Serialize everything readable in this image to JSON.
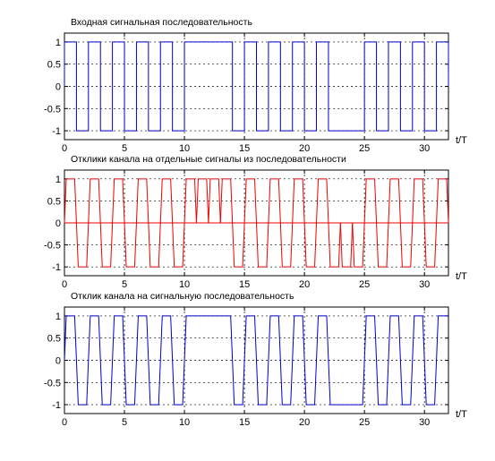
{
  "chart_data": [
    {
      "type": "line",
      "title": "Входная сигнальная последовательность",
      "xlabel": "t/T",
      "ylabel": "",
      "xlim": [
        0,
        32
      ],
      "ylim": [
        -1.2,
        1.2
      ],
      "xticks": [
        0,
        5,
        10,
        15,
        20,
        25,
        30
      ],
      "yticks": [
        1,
        0.5,
        0,
        -0.5,
        -1
      ],
      "ytick_labels": [
        "1",
        "0.5",
        "0",
        "-0.5",
        "-1"
      ],
      "grid": true,
      "color": "#0000cc",
      "series": [
        {
          "symbols": [
            1,
            -1,
            1,
            -1,
            1,
            -1,
            1,
            -1,
            1,
            -1,
            1,
            1,
            1,
            1,
            -1,
            1,
            -1,
            1,
            -1,
            1,
            -1,
            1,
            -1,
            -1,
            -1,
            1,
            -1,
            1,
            -1,
            1,
            -1,
            1
          ]
        }
      ]
    },
    {
      "type": "line",
      "title": "Отклики канала на отдельные сигналы из последовательности",
      "xlabel": "t/T",
      "ylabel": "",
      "xlim": [
        0,
        32
      ],
      "ylim": [
        -1.2,
        1.2
      ],
      "xticks": [
        0,
        5,
        10,
        15,
        20,
        25,
        30
      ],
      "yticks": [
        1,
        0.5,
        0,
        -0.5,
        -1
      ],
      "ytick_labels": [
        "1",
        "0.5",
        "0",
        "-0.5",
        "-1"
      ],
      "grid": true,
      "color": "#ee0000",
      "series": [
        {
          "symbols": [
            1,
            -1,
            1,
            -1,
            1,
            -1,
            1,
            -1,
            1,
            -1,
            1,
            1,
            1,
            1,
            -1,
            1,
            -1,
            1,
            -1,
            1,
            -1,
            1,
            -1,
            -1,
            -1,
            1,
            -1,
            1,
            -1,
            1,
            -1,
            1
          ]
        }
      ]
    },
    {
      "type": "line",
      "title": "Отклик канала на сигнальную последовательность",
      "xlabel": "t/T",
      "ylabel": "",
      "xlim": [
        0,
        32
      ],
      "ylim": [
        -1.2,
        1.2
      ],
      "xticks": [
        0,
        5,
        10,
        15,
        20,
        25,
        30
      ],
      "yticks": [
        1,
        0.5,
        0,
        -0.5,
        -1
      ],
      "ytick_labels": [
        "1",
        "0.5",
        "0",
        "-0.5",
        "-1"
      ],
      "grid": true,
      "color": "#0000cc",
      "series": [
        {
          "symbols": [
            1,
            -1,
            1,
            -1,
            1,
            -1,
            1,
            -1,
            1,
            -1,
            1,
            1,
            1,
            1,
            -1,
            1,
            -1,
            1,
            -1,
            1,
            -1,
            1,
            -1,
            -1,
            -1,
            1,
            -1,
            1,
            -1,
            1,
            -1,
            1
          ]
        }
      ]
    }
  ]
}
